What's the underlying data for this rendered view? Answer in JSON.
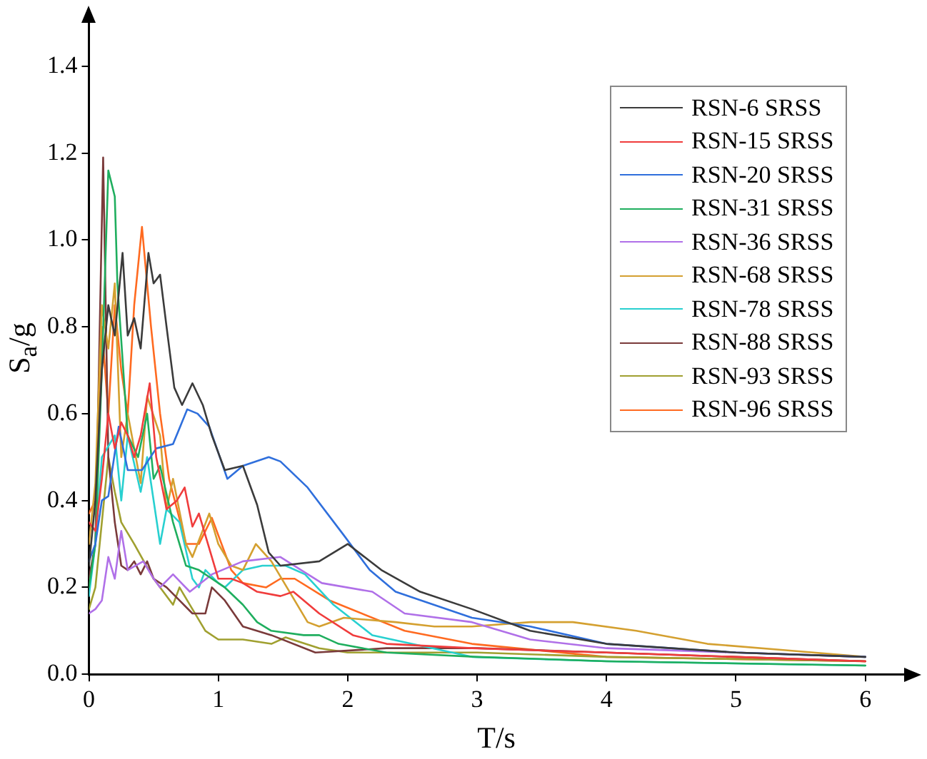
{
  "chart_data": {
    "type": "line",
    "xlabel": "T/s",
    "ylabel": "S$_{a}$/g",
    "xlim": [
      0,
      6.3
    ],
    "ylim": [
      0,
      1.5
    ],
    "xticks": [
      0,
      1,
      2,
      3,
      4,
      5,
      6
    ],
    "yticks": [
      {
        "value": 0,
        "label": "0.0"
      },
      {
        "value": 0.2,
        "label": "0.2"
      },
      {
        "value": 0.4,
        "label": "0.4"
      },
      {
        "value": 0.6,
        "label": "0.6"
      },
      {
        "value": 0.8,
        "label": "0.8"
      },
      {
        "value": 1.0,
        "label": "1.0"
      },
      {
        "value": 1.2,
        "label": "1.2"
      },
      {
        "value": 1.4,
        "label": "1.4"
      }
    ],
    "grid": false,
    "legend": "top right",
    "marker": "none",
    "line_style": "solid",
    "series": [
      {
        "name": "RSN-6 SRSS",
        "color": "#3b3b3b",
        "x": [
          0,
          0.05,
          0.1,
          0.15,
          0.2,
          0.26,
          0.3,
          0.35,
          0.4,
          0.46,
          0.5,
          0.55,
          0.6,
          0.66,
          0.72,
          0.8,
          0.88,
          0.95,
          1.05,
          1.19,
          1.3,
          1.39,
          1.48,
          1.78,
          2.0,
          2.26,
          2.56,
          2.96,
          3.41,
          4,
          5,
          6
        ],
        "values": [
          0.25,
          0.4,
          0.7,
          0.85,
          0.78,
          0.97,
          0.78,
          0.82,
          0.75,
          0.97,
          0.9,
          0.92,
          0.8,
          0.66,
          0.62,
          0.67,
          0.62,
          0.55,
          0.47,
          0.48,
          0.39,
          0.28,
          0.25,
          0.26,
          0.3,
          0.24,
          0.19,
          0.15,
          0.1,
          0.07,
          0.05,
          0.04
        ]
      },
      {
        "name": "RSN-15 SRSS",
        "color": "#f03c3c",
        "x": [
          0,
          0.05,
          0.1,
          0.15,
          0.2,
          0.25,
          0.3,
          0.35,
          0.4,
          0.47,
          0.52,
          0.6,
          0.68,
          0.74,
          0.8,
          0.85,
          0.92,
          1.0,
          1.1,
          1.19,
          1.3,
          1.48,
          1.58,
          1.78,
          2.04,
          2.3,
          2.96,
          4,
          5,
          6
        ],
        "values": [
          0.35,
          0.33,
          0.45,
          0.6,
          0.52,
          0.58,
          0.55,
          0.5,
          0.55,
          0.67,
          0.5,
          0.38,
          0.4,
          0.43,
          0.34,
          0.37,
          0.3,
          0.22,
          0.22,
          0.21,
          0.19,
          0.18,
          0.19,
          0.14,
          0.09,
          0.07,
          0.06,
          0.05,
          0.04,
          0.03
        ]
      },
      {
        "name": "RSN-20 SRSS",
        "color": "#2f6fdc",
        "x": [
          0,
          0.05,
          0.1,
          0.15,
          0.23,
          0.3,
          0.41,
          0.52,
          0.65,
          0.76,
          0.84,
          0.93,
          1.07,
          1.19,
          1.39,
          1.48,
          1.69,
          1.97,
          2.17,
          2.37,
          2.96,
          3.41,
          4,
          5,
          6
        ],
        "values": [
          0.26,
          0.3,
          0.4,
          0.41,
          0.57,
          0.47,
          0.47,
          0.52,
          0.53,
          0.61,
          0.6,
          0.57,
          0.45,
          0.48,
          0.5,
          0.49,
          0.43,
          0.32,
          0.24,
          0.19,
          0.13,
          0.11,
          0.07,
          0.05,
          0.04
        ]
      },
      {
        "name": "RSN-31 SRSS",
        "color": "#1fae5e",
        "x": [
          0,
          0.05,
          0.1,
          0.15,
          0.2,
          0.22,
          0.3,
          0.38,
          0.45,
          0.5,
          0.55,
          0.65,
          0.75,
          0.85,
          0.95,
          1.05,
          1.19,
          1.3,
          1.41,
          1.66,
          1.78,
          1.93,
          2.3,
          3,
          4,
          6
        ],
        "values": [
          0.2,
          0.3,
          0.7,
          1.16,
          1.1,
          0.9,
          0.55,
          0.5,
          0.6,
          0.45,
          0.48,
          0.35,
          0.25,
          0.24,
          0.22,
          0.2,
          0.16,
          0.12,
          0.1,
          0.09,
          0.09,
          0.07,
          0.05,
          0.04,
          0.03,
          0.02
        ]
      },
      {
        "name": "RSN-36 SRSS",
        "color": "#b070e8",
        "x": [
          0,
          0.05,
          0.1,
          0.15,
          0.2,
          0.25,
          0.3,
          0.42,
          0.5,
          0.55,
          0.65,
          0.78,
          0.95,
          1.19,
          1.48,
          1.8,
          2.19,
          2.44,
          2.96,
          3.41,
          4,
          5,
          6
        ],
        "values": [
          0.14,
          0.15,
          0.17,
          0.27,
          0.22,
          0.33,
          0.24,
          0.26,
          0.22,
          0.2,
          0.23,
          0.19,
          0.23,
          0.26,
          0.27,
          0.21,
          0.19,
          0.14,
          0.12,
          0.08,
          0.06,
          0.05,
          0.04
        ]
      },
      {
        "name": "RSN-68 SRSS",
        "color": "#d4a030",
        "x": [
          0,
          0.05,
          0.1,
          0.15,
          0.2,
          0.25,
          0.3,
          0.4,
          0.45,
          0.55,
          0.6,
          0.65,
          0.75,
          0.8,
          0.93,
          1.0,
          1.1,
          1.19,
          1.29,
          1.41,
          1.69,
          1.78,
          1.97,
          2.37,
          2.67,
          2.96,
          3.41,
          3.74,
          4.23,
          4.78,
          5.4,
          6
        ],
        "values": [
          0.3,
          0.44,
          0.85,
          0.75,
          0.9,
          0.5,
          0.6,
          0.44,
          0.64,
          0.55,
          0.38,
          0.45,
          0.3,
          0.27,
          0.37,
          0.3,
          0.25,
          0.24,
          0.3,
          0.26,
          0.12,
          0.11,
          0.13,
          0.12,
          0.11,
          0.11,
          0.12,
          0.12,
          0.1,
          0.07,
          0.055,
          0.04
        ]
      },
      {
        "name": "RSN-78 SRSS",
        "color": "#28d0d0",
        "x": [
          0,
          0.05,
          0.1,
          0.2,
          0.25,
          0.3,
          0.4,
          0.45,
          0.55,
          0.6,
          0.7,
          0.8,
          0.85,
          0.9,
          1.0,
          1.05,
          1.19,
          1.34,
          1.52,
          1.67,
          1.89,
          2.19,
          2.96,
          4,
          5,
          6
        ],
        "values": [
          0.18,
          0.3,
          0.5,
          0.55,
          0.4,
          0.55,
          0.42,
          0.5,
          0.3,
          0.38,
          0.35,
          0.22,
          0.2,
          0.24,
          0.21,
          0.2,
          0.24,
          0.25,
          0.25,
          0.23,
          0.16,
          0.09,
          0.04,
          0.03,
          0.025,
          0.02
        ]
      },
      {
        "name": "RSN-88 SRSS",
        "color": "#7a3a3a",
        "x": [
          0,
          0.05,
          0.11,
          0.15,
          0.2,
          0.25,
          0.3,
          0.35,
          0.4,
          0.45,
          0.5,
          0.6,
          0.7,
          0.8,
          0.9,
          0.95,
          1.05,
          1.19,
          1.41,
          1.75,
          2.3,
          3,
          4,
          5,
          6
        ],
        "values": [
          0.22,
          0.3,
          1.19,
          0.5,
          0.35,
          0.25,
          0.24,
          0.26,
          0.23,
          0.26,
          0.22,
          0.2,
          0.17,
          0.14,
          0.14,
          0.2,
          0.17,
          0.11,
          0.09,
          0.05,
          0.06,
          0.06,
          0.05,
          0.04,
          0.03
        ]
      },
      {
        "name": "RSN-93 SRSS",
        "color": "#a0a030",
        "x": [
          0,
          0.05,
          0.1,
          0.15,
          0.2,
          0.25,
          0.35,
          0.5,
          0.65,
          0.7,
          0.8,
          0.9,
          1.0,
          1.19,
          1.41,
          1.52,
          1.78,
          2.0,
          3,
          4,
          5,
          6
        ],
        "values": [
          0.15,
          0.2,
          0.35,
          0.5,
          0.42,
          0.35,
          0.3,
          0.22,
          0.16,
          0.2,
          0.15,
          0.1,
          0.08,
          0.08,
          0.07,
          0.085,
          0.06,
          0.05,
          0.05,
          0.04,
          0.035,
          0.03
        ]
      },
      {
        "name": "RSN-96 SRSS",
        "color": "#ff6a20",
        "x": [
          0,
          0.05,
          0.1,
          0.15,
          0.2,
          0.25,
          0.3,
          0.35,
          0.41,
          0.48,
          0.55,
          0.62,
          0.75,
          0.85,
          0.95,
          1.1,
          1.19,
          1.37,
          1.48,
          1.59,
          1.86,
          2.44,
          2.96,
          4,
          5,
          6
        ],
        "values": [
          0.37,
          0.4,
          0.8,
          0.6,
          0.85,
          0.7,
          0.6,
          0.85,
          1.03,
          0.8,
          0.6,
          0.45,
          0.3,
          0.3,
          0.36,
          0.24,
          0.21,
          0.2,
          0.22,
          0.22,
          0.17,
          0.1,
          0.07,
          0.04,
          0.035,
          0.03
        ]
      }
    ]
  }
}
